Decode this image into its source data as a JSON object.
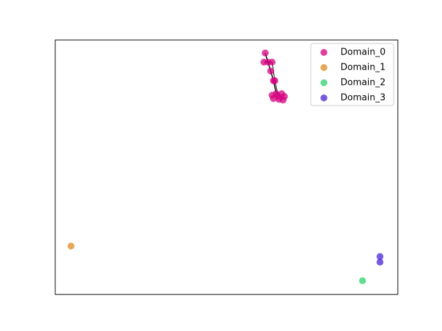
{
  "chart_data": {
    "type": "scatter",
    "xlim": [
      0,
      100
    ],
    "ylim": [
      0,
      100
    ],
    "legend": "upper right",
    "series": [
      {
        "name": "Domain_0",
        "color": "#d6007f",
        "x": [
          61.3,
          60.9,
          62.1,
          63.3,
          62.9,
          63.7,
          64.1,
          63.3,
          64.5,
          66.1,
          66.9,
          65.3,
          63.7,
          65.1,
          66.5
        ],
        "values": [
          94.9,
          91.3,
          91.3,
          91.3,
          87.8,
          84.0,
          84.0,
          78.3,
          78.9,
          78.9,
          77.8,
          76.7,
          77.0,
          77.8,
          76.4
        ]
      },
      {
        "name": "Domain_1",
        "color": "#dd8c22",
        "x": [
          4.6
        ],
        "values": [
          19.0
        ]
      },
      {
        "name": "Domain_2",
        "color": "#2bd26b",
        "x": [
          89.7
        ],
        "values": [
          5.4
        ]
      },
      {
        "name": "Domain_3",
        "color": "#4a24d4",
        "x": [
          94.8,
          94.8
        ],
        "values": [
          14.9,
          12.7
        ]
      }
    ]
  }
}
